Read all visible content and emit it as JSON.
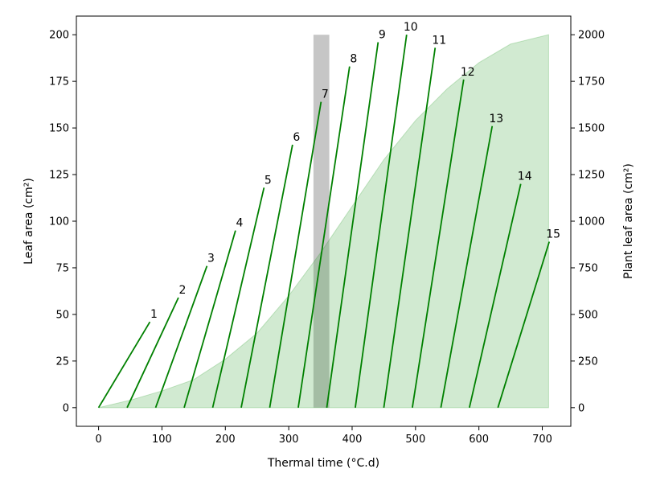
{
  "chart_data": {
    "type": "line",
    "xlabel": "Thermal time (°C.d)",
    "ylabel": "Leaf area (cm²)",
    "y2label": "Plant leaf area (cm²)",
    "xlim": [
      -35,
      745
    ],
    "ylim": [
      -10,
      210
    ],
    "y2lim": [
      -100,
      2100
    ],
    "xticks": [
      0,
      100,
      200,
      300,
      400,
      500,
      600,
      700
    ],
    "yticks": [
      0,
      25,
      50,
      75,
      100,
      125,
      150,
      175,
      200
    ],
    "y2ticks": [
      0,
      250,
      500,
      750,
      1000,
      1250,
      1500,
      1750,
      2000
    ],
    "grid": false,
    "colors": {
      "leaf_line": "#008000",
      "plant_area_fill": "#2ca02c",
      "highlight_band": "#808080"
    },
    "highlight_band": {
      "x0": 339,
      "x1": 364,
      "y0": 0,
      "y1": 200
    },
    "leaves": [
      {
        "label": "1",
        "x0": 0,
        "x1": 81,
        "y_end": 46
      },
      {
        "label": "2",
        "x0": 45,
        "x1": 126,
        "y_end": 59
      },
      {
        "label": "3",
        "x0": 90,
        "x1": 171,
        "y_end": 76
      },
      {
        "label": "4",
        "x0": 135,
        "x1": 216,
        "y_end": 95
      },
      {
        "label": "5",
        "x0": 180,
        "x1": 261,
        "y_end": 118
      },
      {
        "label": "6",
        "x0": 225,
        "x1": 306,
        "y_end": 141
      },
      {
        "label": "7",
        "x0": 270,
        "x1": 351,
        "y_end": 164
      },
      {
        "label": "8",
        "x0": 315,
        "x1": 396,
        "y_end": 183
      },
      {
        "label": "9",
        "x0": 360,
        "x1": 441,
        "y_end": 196
      },
      {
        "label": "10",
        "x0": 405,
        "x1": 486,
        "y_end": 200
      },
      {
        "label": "11",
        "x0": 450,
        "x1": 531,
        "y_end": 193
      },
      {
        "label": "12",
        "x0": 495,
        "x1": 576,
        "y_end": 176
      },
      {
        "label": "13",
        "x0": 540,
        "x1": 621,
        "y_end": 151
      },
      {
        "label": "14",
        "x0": 585,
        "x1": 666,
        "y_end": 120
      },
      {
        "label": "15",
        "x0": 630,
        "x1": 711,
        "y_end": 89
      }
    ],
    "plant_leaf_area": {
      "x": [
        0,
        50,
        100,
        150,
        200,
        250,
        300,
        350,
        400,
        450,
        500,
        550,
        600,
        650,
        710
      ],
      "y": [
        0,
        40,
        90,
        150,
        260,
        400,
        600,
        830,
        1080,
        1330,
        1540,
        1710,
        1850,
        1950,
        2000
      ]
    }
  }
}
